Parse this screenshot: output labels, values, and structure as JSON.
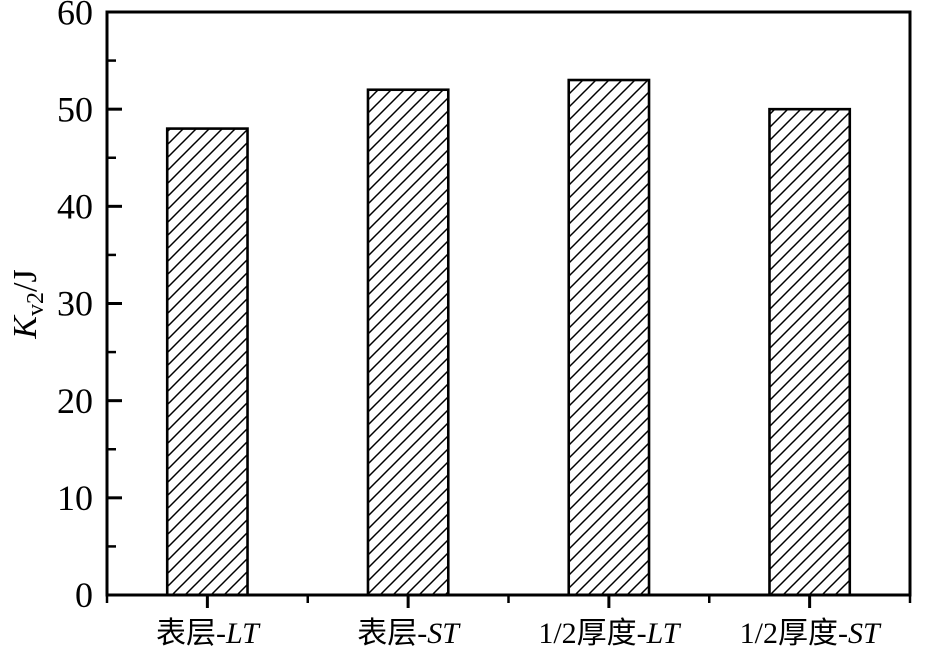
{
  "chart_data": {
    "type": "bar",
    "title": "",
    "categories": [
      "表层-LT",
      "表层-ST",
      "1/2厚度-LT",
      "1/2厚度-ST"
    ],
    "category_parts": [
      {
        "prefix": "表层-",
        "italic_suffix": "LT"
      },
      {
        "prefix": "表层-",
        "italic_suffix": "ST"
      },
      {
        "prefix": "1/2厚度-",
        "italic_suffix": "LT"
      },
      {
        "prefix": "1/2厚度-",
        "italic_suffix": "ST"
      }
    ],
    "values": [
      48,
      52,
      53,
      50
    ],
    "xlabel": "",
    "ylabel": "Kv2/J",
    "ylabel_parts": {
      "symbol": "K",
      "subscript": "v2",
      "unit": "/J"
    },
    "ylim": [
      0,
      60
    ],
    "ytick_major_step": 10,
    "ytick_minor_step": 5,
    "ytick_labels": [
      "0",
      "10",
      "20",
      "30",
      "40",
      "50",
      "60"
    ],
    "bar_fill_style": "diagonal-hatch",
    "bar_relative_width": 0.4,
    "grid": false,
    "legend": null,
    "axis_color": "#000000",
    "bar_outline_color": "#000000",
    "hatch_color": "#000000",
    "background_color": "#ffffff"
  }
}
